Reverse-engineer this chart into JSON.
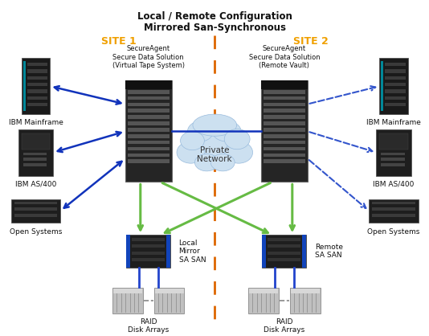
{
  "title_line1": "Local / Remote Configuration",
  "title_line2": "Mirrored San-Synchronous",
  "site1_label": "SITE 1",
  "site2_label": "SITE 2",
  "bg_color": "#ffffff",
  "site_label_color": "#f0a000",
  "blue_color": "#1133bb",
  "green_color": "#66bb44",
  "dashed_orange_color": "#dd6600",
  "dashed_blue_color": "#3355cc",
  "text_color": "#111111",
  "cloud_color": "#cce0f0",
  "cloud_edge_color": "#99bbdd",
  "san_blue_color": "#2244cc",
  "raid_color": "#c8c8c8",
  "rack_face": "#2a2a2a",
  "rack_stripe": "#555555",
  "client_face": "#1a1a1a",
  "client_stripe": "#444444"
}
